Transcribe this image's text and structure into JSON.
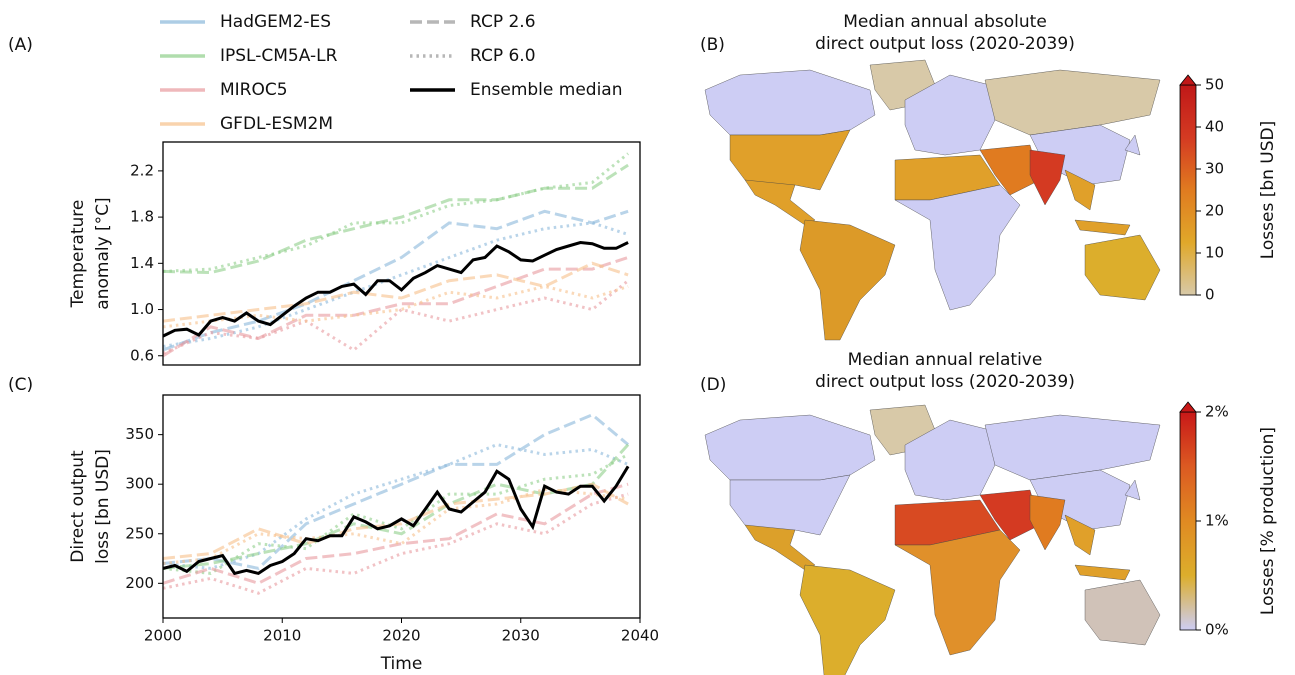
{
  "chart_data": [
    {
      "type": "line",
      "panel": "(A)",
      "ylabel": [
        "Temperature",
        "anomaly [°C]"
      ],
      "xlim": [
        2000,
        2040
      ],
      "ylim": [
        0.52,
        2.45
      ],
      "yticks": [
        0.6,
        {
          "value": 1,
          "label": "1.0"
        },
        1.4,
        1.8,
        2.2
      ],
      "legend": [
        {
          "name": "HadGEM2-ES",
          "color": "#8ab8da",
          "style": "solid"
        },
        {
          "name": "IPSL-CM5A-LR",
          "color": "#8fcf8a",
          "style": "solid"
        },
        {
          "name": "MIROC5",
          "color": "#e89a9e",
          "style": "solid"
        },
        {
          "name": "GFDL-ESM2M",
          "color": "#f7c08a",
          "style": "solid"
        },
        {
          "name": "RCP 2.6",
          "color": "#999999",
          "style": "dashed"
        },
        {
          "name": "RCP 6.0",
          "color": "#999999",
          "style": "dotted"
        },
        {
          "name": "Ensemble median",
          "color": "#000000",
          "style": "solid"
        }
      ],
      "series": [
        {
          "name": "HadGEM2-ES",
          "scenario": "RCP 2.6",
          "color": "#8ab8da",
          "style": "dashed",
          "x": [
            2000,
            2004,
            2008,
            2012,
            2016,
            2020,
            2024,
            2028,
            2032,
            2036,
            2039
          ],
          "values": [
            0.65,
            0.8,
            0.9,
            1.05,
            1.25,
            1.45,
            1.75,
            1.7,
            1.85,
            1.75,
            1.85
          ]
        },
        {
          "name": "HadGEM2-ES",
          "scenario": "RCP 6.0",
          "color": "#8ab8da",
          "style": "dotted",
          "x": [
            2000,
            2004,
            2008,
            2012,
            2016,
            2020,
            2024,
            2028,
            2032,
            2036,
            2039
          ],
          "values": [
            0.68,
            0.75,
            0.85,
            1.0,
            1.15,
            1.3,
            1.45,
            1.6,
            1.7,
            1.75,
            1.65
          ]
        },
        {
          "name": "IPSL-CM5A-LR",
          "scenario": "RCP 2.6",
          "color": "#8fcf8a",
          "style": "dashed",
          "x": [
            2000,
            2004,
            2008,
            2012,
            2016,
            2020,
            2024,
            2028,
            2032,
            2036,
            2039
          ],
          "values": [
            1.33,
            1.32,
            1.42,
            1.6,
            1.7,
            1.8,
            1.95,
            1.95,
            2.05,
            2.05,
            2.25
          ]
        },
        {
          "name": "IPSL-CM5A-LR",
          "scenario": "RCP 6.0",
          "color": "#8fcf8a",
          "style": "dotted",
          "x": [
            2000,
            2004,
            2008,
            2012,
            2016,
            2020,
            2024,
            2028,
            2032,
            2036,
            2039
          ],
          "values": [
            1.33,
            1.35,
            1.45,
            1.55,
            1.75,
            1.75,
            1.9,
            1.95,
            2.05,
            2.1,
            2.35
          ]
        },
        {
          "name": "MIROC5",
          "scenario": "RCP 2.6",
          "color": "#e89a9e",
          "style": "dashed",
          "x": [
            2000,
            2004,
            2008,
            2012,
            2016,
            2020,
            2024,
            2028,
            2032,
            2036,
            2039
          ],
          "values": [
            0.6,
            0.85,
            0.75,
            0.95,
            0.95,
            1.05,
            1.05,
            1.2,
            1.35,
            1.35,
            1.45
          ]
        },
        {
          "name": "MIROC5",
          "scenario": "RCP 6.0",
          "color": "#e89a9e",
          "style": "dotted",
          "x": [
            2000,
            2004,
            2008,
            2012,
            2016,
            2020,
            2024,
            2028,
            2032,
            2036,
            2039
          ],
          "values": [
            0.62,
            0.8,
            0.75,
            0.9,
            0.65,
            1.0,
            0.9,
            1.0,
            1.1,
            1.0,
            1.25
          ]
        },
        {
          "name": "GFDL-ESM2M",
          "scenario": "RCP 2.6",
          "color": "#f7c08a",
          "style": "dashed",
          "x": [
            2000,
            2004,
            2008,
            2012,
            2016,
            2020,
            2024,
            2028,
            2032,
            2036,
            2039
          ],
          "values": [
            0.9,
            0.95,
            1.0,
            1.05,
            1.15,
            1.1,
            1.25,
            1.3,
            1.2,
            1.4,
            1.3
          ]
        },
        {
          "name": "GFDL-ESM2M",
          "scenario": "RCP 6.0",
          "color": "#f7c08a",
          "style": "dotted",
          "x": [
            2000,
            2004,
            2008,
            2012,
            2016,
            2020,
            2024,
            2028,
            2032,
            2036,
            2039
          ],
          "values": [
            0.85,
            0.9,
            0.95,
            0.9,
            0.95,
            1.0,
            1.15,
            1.1,
            1.2,
            1.1,
            1.2
          ]
        },
        {
          "name": "Ensemble median",
          "color": "#000000",
          "style": "solid",
          "x": [
            2000,
            2001,
            2002,
            2003,
            2004,
            2005,
            2006,
            2007,
            2008,
            2009,
            2010,
            2011,
            2012,
            2013,
            2014,
            2015,
            2016,
            2017,
            2018,
            2019,
            2020,
            2021,
            2022,
            2023,
            2024,
            2025,
            2026,
            2027,
            2028,
            2029,
            2030,
            2031,
            2032,
            2033,
            2034,
            2035,
            2036,
            2037,
            2038,
            2039
          ],
          "values": [
            0.77,
            0.82,
            0.83,
            0.78,
            0.9,
            0.93,
            0.9,
            0.97,
            0.9,
            0.87,
            0.95,
            1.03,
            1.1,
            1.15,
            1.15,
            1.2,
            1.22,
            1.13,
            1.25,
            1.25,
            1.17,
            1.27,
            1.32,
            1.38,
            1.35,
            1.32,
            1.43,
            1.45,
            1.55,
            1.5,
            1.43,
            1.42,
            1.47,
            1.52,
            1.55,
            1.58,
            1.57,
            1.53,
            1.53,
            1.58
          ]
        }
      ]
    },
    {
      "type": "line",
      "panel": "(C)",
      "ylabel": [
        "Direct output",
        "loss [bn USD]"
      ],
      "xlabel": "Time",
      "xlim": [
        2000,
        2040
      ],
      "ylim": [
        165,
        390
      ],
      "xticks": [
        2000,
        2010,
        2020,
        2030,
        2040
      ],
      "yticks": [
        200,
        250,
        300,
        350
      ],
      "series": [
        {
          "name": "HadGEM2-ES",
          "scenario": "RCP 2.6",
          "color": "#8ab8da",
          "style": "dashed",
          "x": [
            2000,
            2004,
            2008,
            2012,
            2016,
            2020,
            2024,
            2028,
            2032,
            2036,
            2039
          ],
          "values": [
            220,
            225,
            215,
            260,
            280,
            300,
            320,
            320,
            350,
            370,
            340
          ]
        },
        {
          "name": "HadGEM2-ES",
          "scenario": "RCP 6.0",
          "color": "#8ab8da",
          "style": "dotted",
          "x": [
            2000,
            2004,
            2008,
            2012,
            2016,
            2020,
            2024,
            2028,
            2032,
            2036,
            2039
          ],
          "values": [
            220,
            215,
            230,
            265,
            290,
            305,
            320,
            340,
            330,
            335,
            320
          ]
        },
        {
          "name": "IPSL-CM5A-LR",
          "scenario": "RCP 2.6",
          "color": "#8fcf8a",
          "style": "dashed",
          "x": [
            2000,
            2004,
            2008,
            2012,
            2016,
            2020,
            2024,
            2028,
            2032,
            2036,
            2039
          ],
          "values": [
            215,
            220,
            230,
            240,
            260,
            250,
            280,
            300,
            290,
            300,
            340
          ]
        },
        {
          "name": "IPSL-CM5A-LR",
          "scenario": "RCP 6.0",
          "color": "#8fcf8a",
          "style": "dotted",
          "x": [
            2000,
            2004,
            2008,
            2012,
            2016,
            2020,
            2024,
            2028,
            2032,
            2036,
            2039
          ],
          "values": [
            215,
            210,
            240,
            235,
            270,
            255,
            290,
            290,
            305,
            310,
            330
          ]
        },
        {
          "name": "MIROC5",
          "scenario": "RCP 2.6",
          "color": "#e89a9e",
          "style": "dashed",
          "x": [
            2000,
            2004,
            2008,
            2012,
            2016,
            2020,
            2024,
            2028,
            2032,
            2036,
            2039
          ],
          "values": [
            200,
            215,
            200,
            225,
            230,
            240,
            245,
            270,
            260,
            290,
            300
          ]
        },
        {
          "name": "MIROC5",
          "scenario": "RCP 6.0",
          "color": "#e89a9e",
          "style": "dotted",
          "x": [
            2000,
            2004,
            2008,
            2012,
            2016,
            2020,
            2024,
            2028,
            2032,
            2036,
            2039
          ],
          "values": [
            195,
            205,
            190,
            215,
            210,
            230,
            240,
            260,
            250,
            280,
            290
          ]
        },
        {
          "name": "GFDL-ESM2M",
          "scenario": "RCP 2.6",
          "color": "#f7c08a",
          "style": "dashed",
          "x": [
            2000,
            2004,
            2008,
            2012,
            2016,
            2020,
            2024,
            2028,
            2032,
            2036,
            2039
          ],
          "values": [
            225,
            230,
            255,
            240,
            255,
            260,
            280,
            285,
            290,
            300,
            280
          ]
        },
        {
          "name": "GFDL-ESM2M",
          "scenario": "RCP 6.0",
          "color": "#f7c08a",
          "style": "dotted",
          "x": [
            2000,
            2004,
            2008,
            2012,
            2016,
            2020,
            2024,
            2028,
            2032,
            2036,
            2039
          ],
          "values": [
            220,
            225,
            250,
            245,
            250,
            240,
            275,
            280,
            295,
            290,
            285
          ]
        },
        {
          "name": "Ensemble median",
          "color": "#000000",
          "style": "solid",
          "x": [
            2000,
            2001,
            2002,
            2003,
            2004,
            2005,
            2006,
            2007,
            2008,
            2009,
            2010,
            2011,
            2012,
            2013,
            2014,
            2015,
            2016,
            2017,
            2018,
            2019,
            2020,
            2021,
            2022,
            2023,
            2024,
            2025,
            2026,
            2027,
            2028,
            2029,
            2030,
            2031,
            2032,
            2033,
            2034,
            2035,
            2036,
            2037,
            2038,
            2039
          ],
          "values": [
            215,
            218,
            212,
            222,
            225,
            228,
            210,
            213,
            210,
            218,
            222,
            230,
            245,
            243,
            248,
            248,
            267,
            262,
            255,
            258,
            265,
            258,
            275,
            292,
            275,
            272,
            282,
            292,
            313,
            305,
            275,
            257,
            298,
            292,
            290,
            298,
            298,
            283,
            298,
            318
          ]
        }
      ]
    },
    {
      "type": "colorbar",
      "panel": "(B)",
      "title": [
        "Median annual absolute",
        "direct output loss (2020-2039)"
      ],
      "label": "Losses [bn USD]",
      "ylim": [
        0,
        50
      ],
      "yticks": [
        0,
        10,
        20,
        30,
        40,
        50
      ],
      "colors": [
        "#d8c9a8",
        "#e0a82a",
        "#e07b20",
        "#d43a22",
        "#c01818"
      ]
    },
    {
      "type": "colorbar",
      "panel": "(D)",
      "title": [
        "Median annual relative",
        "direct output loss (2020-2039)"
      ],
      "label": "Losses [% production]",
      "ylim": [
        0,
        2
      ],
      "yticks": [
        {
          "value": 0,
          "label": "0%"
        },
        {
          "value": 1,
          "label": "1%"
        },
        {
          "value": 2,
          "label": "2%"
        }
      ],
      "colors": [
        "#cdcdf4",
        "#dcae2c",
        "#e08a22",
        "#dc5a22",
        "#c81818"
      ]
    }
  ]
}
